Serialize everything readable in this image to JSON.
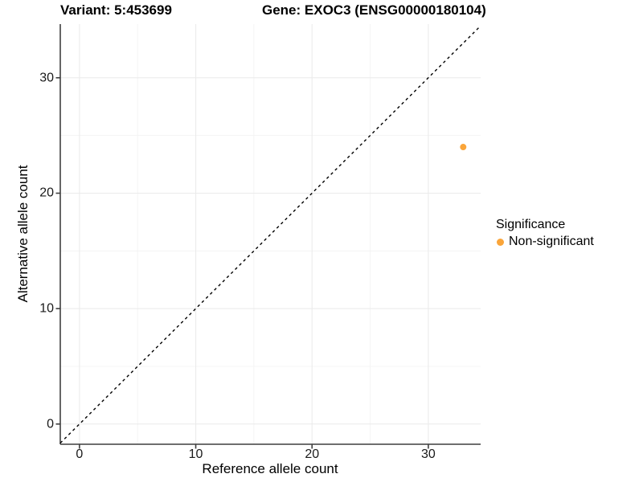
{
  "chart_data": {
    "type": "scatter",
    "titles": {
      "variant": "Variant: 5:453699",
      "gene": "Gene: EXOC3 (ENSG00000180104)"
    },
    "xlabel": "Reference allele count",
    "ylabel": "Alternative allele count",
    "xlim": [
      -1.65,
      34.5
    ],
    "ylim": [
      -1.75,
      34.65
    ],
    "x_ticks": [
      0,
      10,
      20,
      30
    ],
    "y_ticks": [
      0,
      10,
      20,
      30
    ],
    "x_minor_ticks": [
      5,
      15,
      25
    ],
    "y_minor_ticks": [
      5,
      15,
      25
    ],
    "grid": "major+minor",
    "reference_line": {
      "kind": "identity y=x",
      "style": "dashed",
      "color": "#000000"
    },
    "series": [
      {
        "name": "Non-significant",
        "color": "#FAA53A",
        "points": [
          [
            33,
            24
          ]
        ]
      }
    ],
    "legend": {
      "position": "right",
      "title": "Significance",
      "items": [
        {
          "label": "Non-significant",
          "color": "#FAA53A"
        }
      ]
    }
  },
  "style_colors": {
    "axis_line": "#3F3F3F",
    "grid_major": "#EBEBEB",
    "grid_minor": "#F2F2F2",
    "point": "#FAA53A"
  }
}
